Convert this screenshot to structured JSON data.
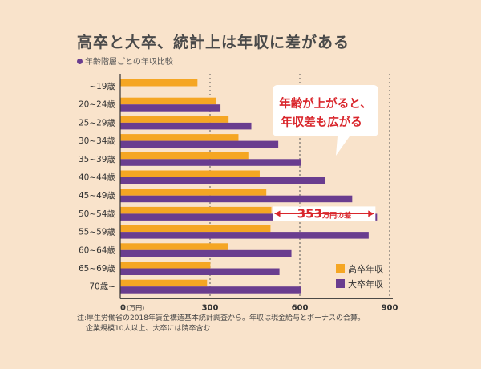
{
  "title": "高卒と大卒、統計上は年収に差がある",
  "subtitle": "年齢階層ごとの年収比較",
  "callout": {
    "line1": "年齢が上がると、",
    "line2": "年収差も広がる"
  },
  "diff_label": {
    "value": "353",
    "unit": "万円の差"
  },
  "notes": [
    "注:厚生労働省の2018年賃金構造基本統計調査から。年収は現金給与とボーナスの合算。",
    "企業規模10人以上、大卒には院卒含む"
  ],
  "colors": {
    "high_school": "#f5a623",
    "university": "#6a3d8f",
    "background": "#f9e3cb",
    "accent_red": "#d9262c"
  },
  "chart_data": {
    "type": "bar",
    "orientation": "horizontal",
    "categories": [
      "~19歳",
      "20~24歳",
      "25~29歳",
      "30~34歳",
      "35~39歳",
      "40~44歳",
      "45~49歳",
      "50~54歳",
      "55~59歳",
      "60~64歳",
      "65~69歳",
      "70歳~"
    ],
    "series": [
      {
        "name": "高卒年収",
        "values": [
          258,
          320,
          362,
          395,
          428,
          466,
          488,
          505,
          502,
          360,
          301,
          290
        ]
      },
      {
        "name": "大卒年収",
        "values": [
          0,
          335,
          438,
          528,
          605,
          685,
          775,
          858,
          830,
          572,
          532,
          605
        ]
      }
    ],
    "xlim": [
      0,
      900
    ],
    "xticks": [
      0,
      300,
      600,
      900
    ],
    "xtick_labels": [
      "0",
      "300",
      "600",
      "900"
    ],
    "xunit": "(万円)",
    "gridlines": "dashed vertical at 300, 600, 900",
    "legend_position": "bottom-right"
  }
}
